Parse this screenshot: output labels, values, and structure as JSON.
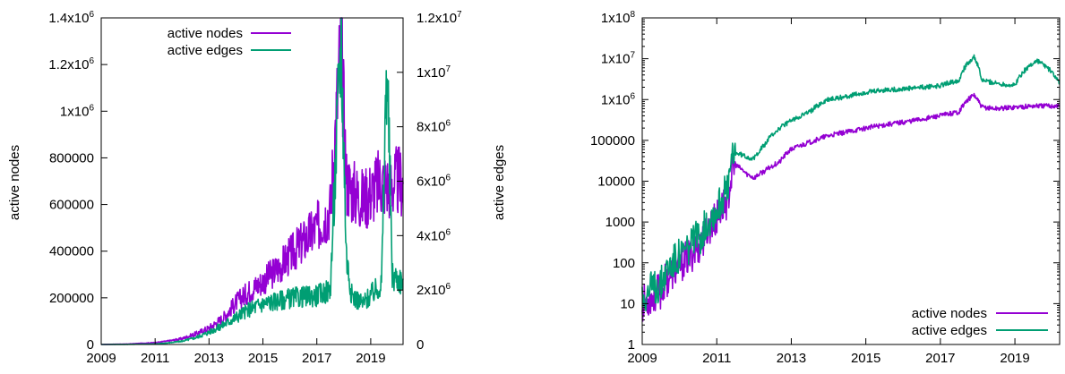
{
  "chart_data": [
    {
      "type": "line",
      "x_ticks": [
        "2009",
        "2011",
        "2013",
        "2015",
        "2017",
        "2019"
      ],
      "xlim": [
        2009,
        2020.2
      ],
      "ylabel": "active nodes",
      "ylim": [
        0,
        1400000
      ],
      "y_ticks": [
        "0",
        "200000",
        "400000",
        "600000",
        "800000",
        "1x10^6",
        "1.2x10^6",
        "1.4x10^6"
      ],
      "y2label": "active edges",
      "y2lim": [
        0,
        12000000
      ],
      "y2_ticks": [
        "0",
        "2x10^6",
        "4x10^6",
        "6x10^6",
        "8x10^6",
        "1x10^7",
        "1.2x10^7"
      ],
      "legend": "top-left",
      "series": [
        {
          "name": "active nodes",
          "color": "#9400d3",
          "axis": "left",
          "x": [
            2009.0,
            2010.0,
            2011.0,
            2011.5,
            2012.0,
            2012.5,
            2013.0,
            2013.5,
            2014.0,
            2014.5,
            2015.0,
            2015.5,
            2016.0,
            2016.5,
            2017.0,
            2017.5,
            2017.9,
            2018.1,
            2018.3,
            2018.7,
            2019.0,
            2019.4,
            2019.7,
            2020.0,
            2020.2
          ],
          "values": [
            0,
            2000,
            8000,
            15000,
            25000,
            45000,
            70000,
            110000,
            180000,
            230000,
            270000,
            320000,
            380000,
            440000,
            500000,
            580000,
            1300000,
            700000,
            660000,
            620000,
            650000,
            700000,
            680000,
            700000,
            690000
          ]
        },
        {
          "name": "active edges",
          "color": "#009e73",
          "axis": "right",
          "x": [
            2009.0,
            2010.0,
            2011.0,
            2011.5,
            2012.0,
            2012.5,
            2013.0,
            2013.5,
            2014.0,
            2014.5,
            2015.0,
            2015.5,
            2016.0,
            2016.5,
            2017.0,
            2017.5,
            2017.9,
            2018.1,
            2018.3,
            2018.7,
            2019.0,
            2019.4,
            2019.6,
            2019.8,
            2020.2
          ],
          "values": [
            0,
            5000,
            20000,
            60000,
            120000,
            250000,
            450000,
            700000,
            1000000,
            1300000,
            1500000,
            1600000,
            1700000,
            1750000,
            1800000,
            2000000,
            11400000,
            3200000,
            1800000,
            1500000,
            1800000,
            2200000,
            10500000,
            2500000,
            2300000
          ]
        }
      ]
    },
    {
      "type": "line",
      "x_ticks": [
        "2009",
        "2011",
        "2013",
        "2015",
        "2017",
        "2019"
      ],
      "xlim": [
        2009,
        2020.2
      ],
      "yscale": "log",
      "ylim": [
        1,
        100000000
      ],
      "y_ticks": [
        "1",
        "10",
        "100",
        "1000",
        "10000",
        "100000",
        "1x10^6",
        "1x10^7",
        "1x10^8"
      ],
      "legend": "bottom-right",
      "series": [
        {
          "name": "active nodes",
          "color": "#9400d3",
          "x": [
            2009.0,
            2009.5,
            2010.0,
            2010.3,
            2010.6,
            2011.0,
            2011.3,
            2011.5,
            2011.8,
            2012.0,
            2012.3,
            2012.7,
            2013.0,
            2013.5,
            2014.0,
            2014.5,
            2015.0,
            2015.5,
            2016.0,
            2016.5,
            2017.0,
            2017.5,
            2017.9,
            2018.1,
            2018.5,
            2019.0,
            2019.5,
            2020.2
          ],
          "values": [
            10,
            20,
            80,
            150,
            300,
            1200,
            3500,
            25000,
            15000,
            12000,
            18000,
            30000,
            60000,
            90000,
            130000,
            160000,
            200000,
            240000,
            280000,
            330000,
            400000,
            500000,
            1300000,
            650000,
            600000,
            650000,
            700000,
            700000
          ]
        },
        {
          "name": "active edges",
          "color": "#009e73",
          "x": [
            2009.0,
            2009.5,
            2010.0,
            2010.3,
            2010.6,
            2011.0,
            2011.3,
            2011.5,
            2011.8,
            2012.0,
            2012.3,
            2012.7,
            2013.0,
            2013.5,
            2014.0,
            2014.5,
            2015.0,
            2015.5,
            2016.0,
            2016.5,
            2017.0,
            2017.5,
            2017.9,
            2018.1,
            2018.5,
            2019.0,
            2019.6,
            2020.2
          ],
          "values": [
            15,
            30,
            150,
            250,
            500,
            2000,
            6000,
            50000,
            40000,
            35000,
            80000,
            200000,
            300000,
            500000,
            1000000,
            1200000,
            1500000,
            1700000,
            1800000,
            2000000,
            2200000,
            3000000,
            11000000,
            3000000,
            2500000,
            2200000,
            9000000,
            2300000
          ]
        }
      ]
    }
  ]
}
